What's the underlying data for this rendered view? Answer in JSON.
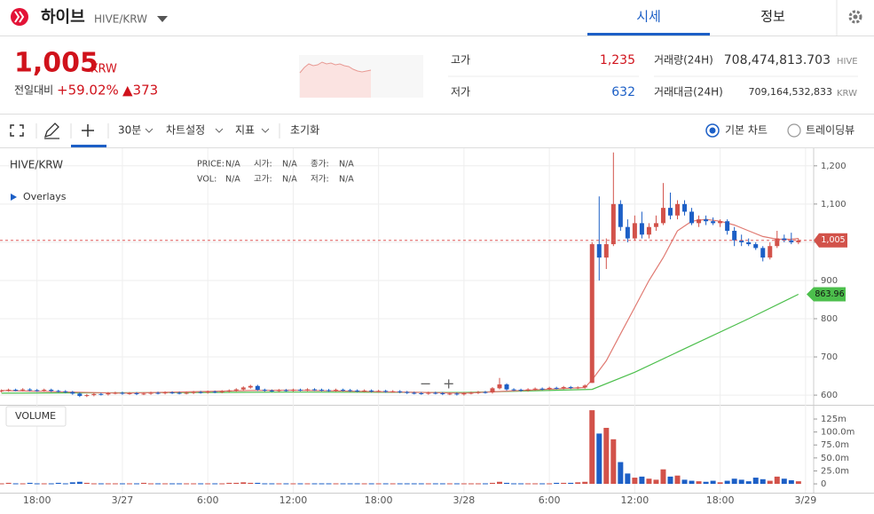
{
  "header": {
    "name": "하이브",
    "pair": "HIVE/KRW",
    "tabs": [
      "시세",
      "정보"
    ],
    "price": "1,005",
    "currency": "KRW",
    "change_label": "전일대비",
    "change_pct": "+59.02%",
    "change_abs": "▲373",
    "high_label": "고가",
    "high": "1,235",
    "low_label": "저가",
    "low": "632",
    "volume_label": "거래량(24H)",
    "volume": "708,474,813.703",
    "volume_unit": "HIVE",
    "turnover_label": "거래대금(24H)",
    "turnover": "709,164,532,833",
    "turnover_unit": "KRW"
  },
  "toolbar": {
    "interval": "30분",
    "settings": "차트설정",
    "indicators": "지표",
    "reset": "초기화",
    "chart_types": [
      "기본 차트",
      "트레이딩뷰"
    ]
  },
  "chart_data": {
    "type": "candlestick",
    "title": "HIVE/KRW",
    "overlays": "Overlays",
    "volume_title": "VOLUME",
    "info": [
      [
        "PRICE:",
        "N/A",
        "시가:",
        "N/A",
        "종가:",
        "N/A"
      ],
      [
        "VOL:",
        "N/A",
        "고가:",
        "N/A",
        "저가:",
        "N/A"
      ]
    ],
    "up_color": "#d2524a",
    "down_color": "#1c5fc6",
    "x": [
      -8.5,
      -8,
      -7.5,
      -7,
      -6.5,
      -6,
      -5.5,
      -5,
      -4.5,
      -4,
      -3.5,
      -3,
      -2.5,
      -2,
      -1.5,
      -1,
      -0.5,
      0,
      0.5,
      1,
      1.5,
      2,
      2.5,
      3,
      3.5,
      4,
      4.5,
      5,
      5.5,
      6,
      6.5,
      7,
      7.5,
      8,
      8.5,
      9,
      9.5,
      10,
      10.5,
      11,
      11.5,
      12,
      12.5,
      13,
      13.5,
      14,
      14.5,
      15,
      15.5,
      16,
      16.5,
      17,
      17.5,
      18,
      18.5,
      19,
      19.5,
      20,
      20.5,
      21,
      21.5,
      22,
      22.5,
      23,
      23.5,
      24,
      24.5,
      25,
      25.5,
      26,
      26.5,
      27,
      27.5,
      28,
      28.5,
      29,
      29.5,
      30,
      30.5,
      31,
      31.5,
      32,
      32.5,
      33,
      33.5,
      34,
      34.5,
      35,
      35.5,
      36,
      36.5,
      37,
      37.5,
      38,
      38.5,
      39,
      39.5,
      40,
      40.5,
      41,
      41.5,
      42,
      42.5,
      43,
      43.5,
      44,
      44.5,
      45,
      45.5,
      46,
      46.5,
      47,
      47.5
    ],
    "ohlc": [
      [
        610,
        615,
        607,
        612
      ],
      [
        612,
        617,
        609,
        614
      ],
      [
        614,
        617,
        610,
        613
      ],
      [
        613,
        618,
        610,
        615
      ],
      [
        615,
        618,
        610,
        613
      ],
      [
        613,
        616,
        609,
        612
      ],
      [
        612,
        617,
        609,
        614
      ],
      [
        614,
        617,
        608,
        611
      ],
      [
        611,
        614,
        607,
        610
      ],
      [
        610,
        613,
        605,
        608
      ],
      [
        608,
        611,
        601,
        604
      ],
      [
        604,
        607,
        595,
        598
      ],
      [
        598,
        603,
        595,
        600
      ],
      [
        600,
        606,
        597,
        603
      ],
      [
        603,
        606,
        599,
        602
      ],
      [
        602,
        608,
        599,
        605
      ],
      [
        605,
        609,
        602,
        606
      ],
      [
        606,
        609,
        601,
        604
      ],
      [
        604,
        608,
        601,
        605
      ],
      [
        605,
        608,
        600,
        603
      ],
      [
        603,
        607,
        600,
        604
      ],
      [
        604,
        609,
        601,
        606
      ],
      [
        606,
        609,
        602,
        605
      ],
      [
        605,
        610,
        602,
        607
      ],
      [
        607,
        610,
        603,
        606
      ],
      [
        606,
        609,
        602,
        605
      ],
      [
        605,
        609,
        602,
        606
      ],
      [
        606,
        611,
        603,
        608
      ],
      [
        608,
        611,
        604,
        607
      ],
      [
        607,
        612,
        604,
        609
      ],
      [
        609,
        612,
        605,
        608
      ],
      [
        608,
        613,
        605,
        610
      ],
      [
        610,
        615,
        607,
        612
      ],
      [
        612,
        618,
        609,
        615
      ],
      [
        615,
        623,
        612,
        620
      ],
      [
        620,
        627,
        617,
        624
      ],
      [
        624,
        627,
        611,
        614
      ],
      [
        614,
        617,
        609,
        612
      ],
      [
        612,
        615,
        608,
        611
      ],
      [
        611,
        616,
        608,
        613
      ],
      [
        613,
        616,
        609,
        612
      ],
      [
        612,
        617,
        609,
        614
      ],
      [
        614,
        617,
        610,
        613
      ],
      [
        613,
        618,
        610,
        615
      ],
      [
        615,
        618,
        611,
        614
      ],
      [
        614,
        617,
        610,
        613
      ],
      [
        613,
        616,
        609,
        612
      ],
      [
        612,
        617,
        609,
        614
      ],
      [
        614,
        617,
        610,
        613
      ],
      [
        613,
        616,
        609,
        612
      ],
      [
        612,
        615,
        608,
        611
      ],
      [
        611,
        615,
        608,
        612
      ],
      [
        612,
        615,
        607,
        610
      ],
      [
        610,
        614,
        607,
        611
      ],
      [
        611,
        614,
        606,
        609
      ],
      [
        609,
        613,
        606,
        610
      ],
      [
        610,
        613,
        605,
        608
      ],
      [
        608,
        611,
        603,
        606
      ],
      [
        606,
        609,
        602,
        605
      ],
      [
        605,
        608,
        601,
        604
      ],
      [
        604,
        609,
        601,
        606
      ],
      [
        606,
        609,
        602,
        605
      ],
      [
        605,
        608,
        600,
        603
      ],
      [
        603,
        607,
        600,
        604
      ],
      [
        604,
        607,
        599,
        602
      ],
      [
        602,
        608,
        599,
        605
      ],
      [
        605,
        609,
        602,
        606
      ],
      [
        606,
        611,
        603,
        608
      ],
      [
        608,
        611,
        604,
        607
      ],
      [
        607,
        621,
        604,
        618
      ],
      [
        618,
        645,
        615,
        628
      ],
      [
        628,
        631,
        612,
        615
      ],
      [
        615,
        618,
        611,
        614
      ],
      [
        614,
        617,
        609,
        612
      ],
      [
        612,
        618,
        609,
        615
      ],
      [
        615,
        620,
        612,
        617
      ],
      [
        617,
        620,
        613,
        616
      ],
      [
        616,
        622,
        613,
        619
      ],
      [
        619,
        622,
        615,
        618
      ],
      [
        618,
        624,
        615,
        621
      ],
      [
        621,
        624,
        616,
        619
      ],
      [
        619,
        623,
        616,
        620
      ],
      [
        620,
        628,
        617,
        625
      ],
      [
        632,
        1000,
        632,
        995
      ],
      [
        995,
        1120,
        900,
        960
      ],
      [
        960,
        1010,
        930,
        995
      ],
      [
        995,
        1235,
        990,
        1100
      ],
      [
        1100,
        1110,
        1030,
        1040
      ],
      [
        1040,
        1060,
        1000,
        1010
      ],
      [
        1010,
        1070,
        1005,
        1050
      ],
      [
        1050,
        1080,
        1010,
        1020
      ],
      [
        1020,
        1050,
        1010,
        1040
      ],
      [
        1040,
        1070,
        1030,
        1050
      ],
      [
        1050,
        1155,
        1045,
        1090
      ],
      [
        1090,
        1130,
        1060,
        1070
      ],
      [
        1070,
        1110,
        1060,
        1100
      ],
      [
        1100,
        1110,
        1070,
        1080
      ],
      [
        1080,
        1090,
        1045,
        1050
      ],
      [
        1050,
        1070,
        1040,
        1060
      ],
      [
        1060,
        1070,
        1045,
        1055
      ],
      [
        1055,
        1065,
        1045,
        1050
      ],
      [
        1050,
        1060,
        1040,
        1055
      ],
      [
        1055,
        1060,
        1020,
        1030
      ],
      [
        1030,
        1040,
        990,
        1005
      ],
      [
        1005,
        1020,
        990,
        1000
      ],
      [
        1000,
        1010,
        990,
        995
      ],
      [
        995,
        1000,
        980,
        985
      ],
      [
        985,
        990,
        950,
        960
      ],
      [
        960,
        1000,
        955,
        990
      ],
      [
        990,
        1030,
        985,
        1010
      ],
      [
        1010,
        1020,
        1000,
        1005
      ],
      [
        1005,
        1025,
        995,
        1000
      ],
      [
        1000,
        1010,
        995,
        1005
      ]
    ],
    "volume": [
      1,
      2,
      1,
      1,
      2,
      1,
      1,
      1,
      2,
      1,
      3,
      4,
      2,
      1,
      1,
      1,
      1,
      1,
      1,
      1,
      2,
      1,
      1,
      1,
      1,
      1,
      1,
      1,
      1,
      1,
      1,
      1,
      2,
      2,
      3,
      2,
      2,
      1,
      1,
      1,
      1,
      1,
      1,
      1,
      1,
      1,
      1,
      1,
      1,
      1,
      1,
      1,
      1,
      1,
      1,
      1,
      1,
      1,
      1,
      1,
      1,
      1,
      1,
      1,
      1,
      1,
      1,
      1,
      1,
      2,
      4,
      2,
      1,
      1,
      1,
      1,
      1,
      1,
      2,
      2,
      2,
      3,
      4,
      142,
      97,
      108,
      86,
      42,
      20,
      12,
      14,
      10,
      8,
      28,
      14,
      16,
      8,
      6,
      5,
      4,
      6,
      3,
      6,
      10,
      8,
      5,
      12,
      9,
      6,
      14,
      10,
      7,
      5
    ],
    "ma_short": {
      "color": "#e07a72",
      "x": [
        -8.5,
        0,
        9,
        12,
        24,
        28,
        32.5,
        33,
        34,
        35,
        36,
        37,
        38,
        39,
        40,
        41,
        42,
        43,
        44,
        45,
        46,
        47,
        47.5
      ],
      "values": [
        612,
        605,
        612,
        613,
        605,
        612,
        620,
        640,
        690,
        760,
        830,
        900,
        960,
        1030,
        1055,
        1060,
        1055,
        1045,
        1030,
        1015,
        1008,
        1008,
        1010
      ]
    },
    "ma_long": {
      "color": "#4cbf4c",
      "x": [
        -8.5,
        12,
        24,
        33,
        36,
        40,
        44,
        47.5
      ],
      "values": [
        605,
        608,
        607,
        615,
        660,
        730,
        800,
        863.96
      ]
    },
    "price_line": {
      "value": 1005,
      "label": "1,005"
    },
    "xlim": [
      -8.6,
      48.57
    ],
    "xticks": [
      {
        "value": -6,
        "label": "18:00"
      },
      {
        "value": 0,
        "label": "3/27"
      },
      {
        "value": 6,
        "label": "6:00"
      },
      {
        "value": 12,
        "label": "12:00"
      },
      {
        "value": 18,
        "label": "18:00"
      },
      {
        "value": 24,
        "label": "3/28"
      },
      {
        "value": 30,
        "label": "6:00"
      },
      {
        "value": 36,
        "label": "12:00"
      },
      {
        "value": 42,
        "label": "18:00"
      },
      {
        "value": 48,
        "label": "3/29"
      }
    ],
    "ylim": [
      577,
      1246
    ],
    "yticks": [
      600,
      700,
      800,
      900,
      {
        "value": 1000,
        "label": "1,000"
      },
      {
        "value": 1100,
        "label": "1,100"
      },
      {
        "value": 1200,
        "label": "1,200"
      }
    ],
    "volume_ylim": [
      -17,
      149
    ],
    "volume_yticks": [
      0,
      {
        "value": 25,
        "label": "25.0m"
      },
      {
        "value": 50,
        "label": "50.0m"
      },
      {
        "value": 75,
        "label": "75.0m"
      },
      {
        "value": 100,
        "label": "100.0m"
      },
      {
        "value": 125,
        "label": "125m"
      }
    ],
    "grid": true
  }
}
